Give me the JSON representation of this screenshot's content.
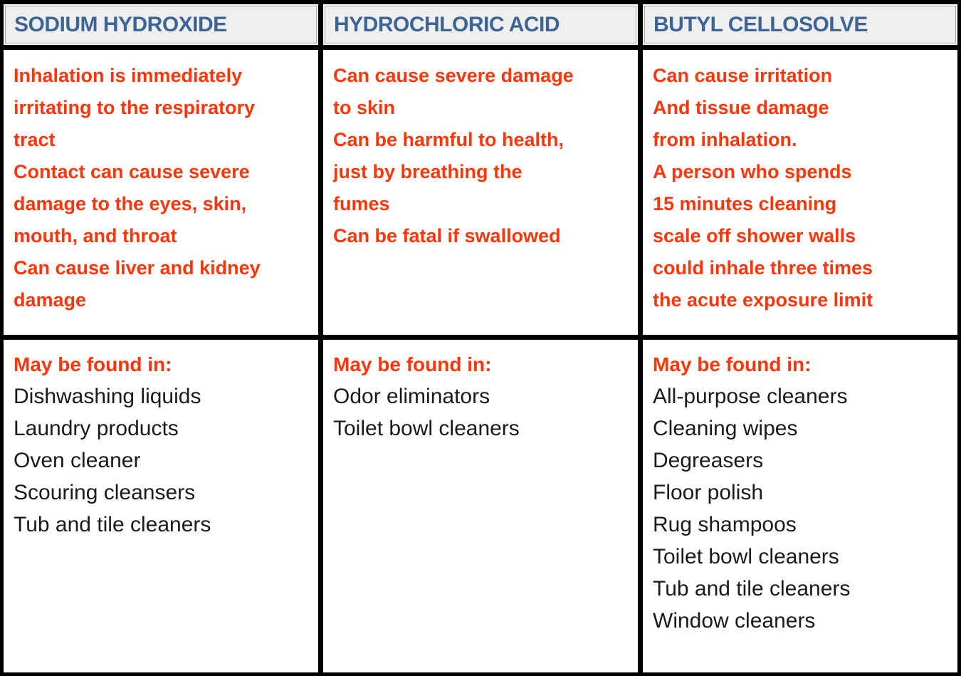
{
  "colors": {
    "header_text": "#3c6595",
    "header_background": "#efefef",
    "header_border": "#a6a6a6",
    "hazard_text": "#ff3609",
    "list_text": "#1a1a1a",
    "grid_lines": "#000000",
    "cell_background": "#ffffff"
  },
  "table": {
    "columns": [
      {
        "header": "SODIUM HYDROXIDE",
        "hazard_lines": [
          "Inhalation is immediately",
          "irritating to the respiratory",
          "tract",
          "Contact can cause severe",
          "damage to the eyes, skin,",
          "mouth, and throat",
          "Can cause liver and kidney",
          "damage"
        ],
        "found_in_label": "May be found in:",
        "found_in_items": [
          "Dishwashing liquids",
          "Laundry products",
          "Oven cleaner",
          "Scouring cleansers",
          "Tub and tile cleaners"
        ]
      },
      {
        "header": "HYDROCHLORIC ACID",
        "hazard_lines": [
          "Can cause severe damage",
          "to skin",
          "Can be harmful to health,",
          "just by breathing the",
          "fumes",
          "Can be fatal if swallowed"
        ],
        "found_in_label": "May be found in:",
        "found_in_items": [
          "Odor eliminators",
          "Toilet bowl cleaners"
        ]
      },
      {
        "header": "BUTYL CELLOSOLVE",
        "hazard_lines": [
          "Can cause irritation",
          "And tissue damage",
          "from inhalation.",
          "A person who spends",
          "15 minutes cleaning",
          "scale off shower walls",
          "could inhale three times",
          "the acute exposure limit"
        ],
        "found_in_label": "May be found in:",
        "found_in_items": [
          "All-purpose cleaners",
          "Cleaning wipes",
          "Degreasers",
          "Floor polish",
          "Rug shampoos",
          "Toilet bowl cleaners",
          "Tub and tile cleaners",
          "Window cleaners"
        ]
      }
    ]
  }
}
